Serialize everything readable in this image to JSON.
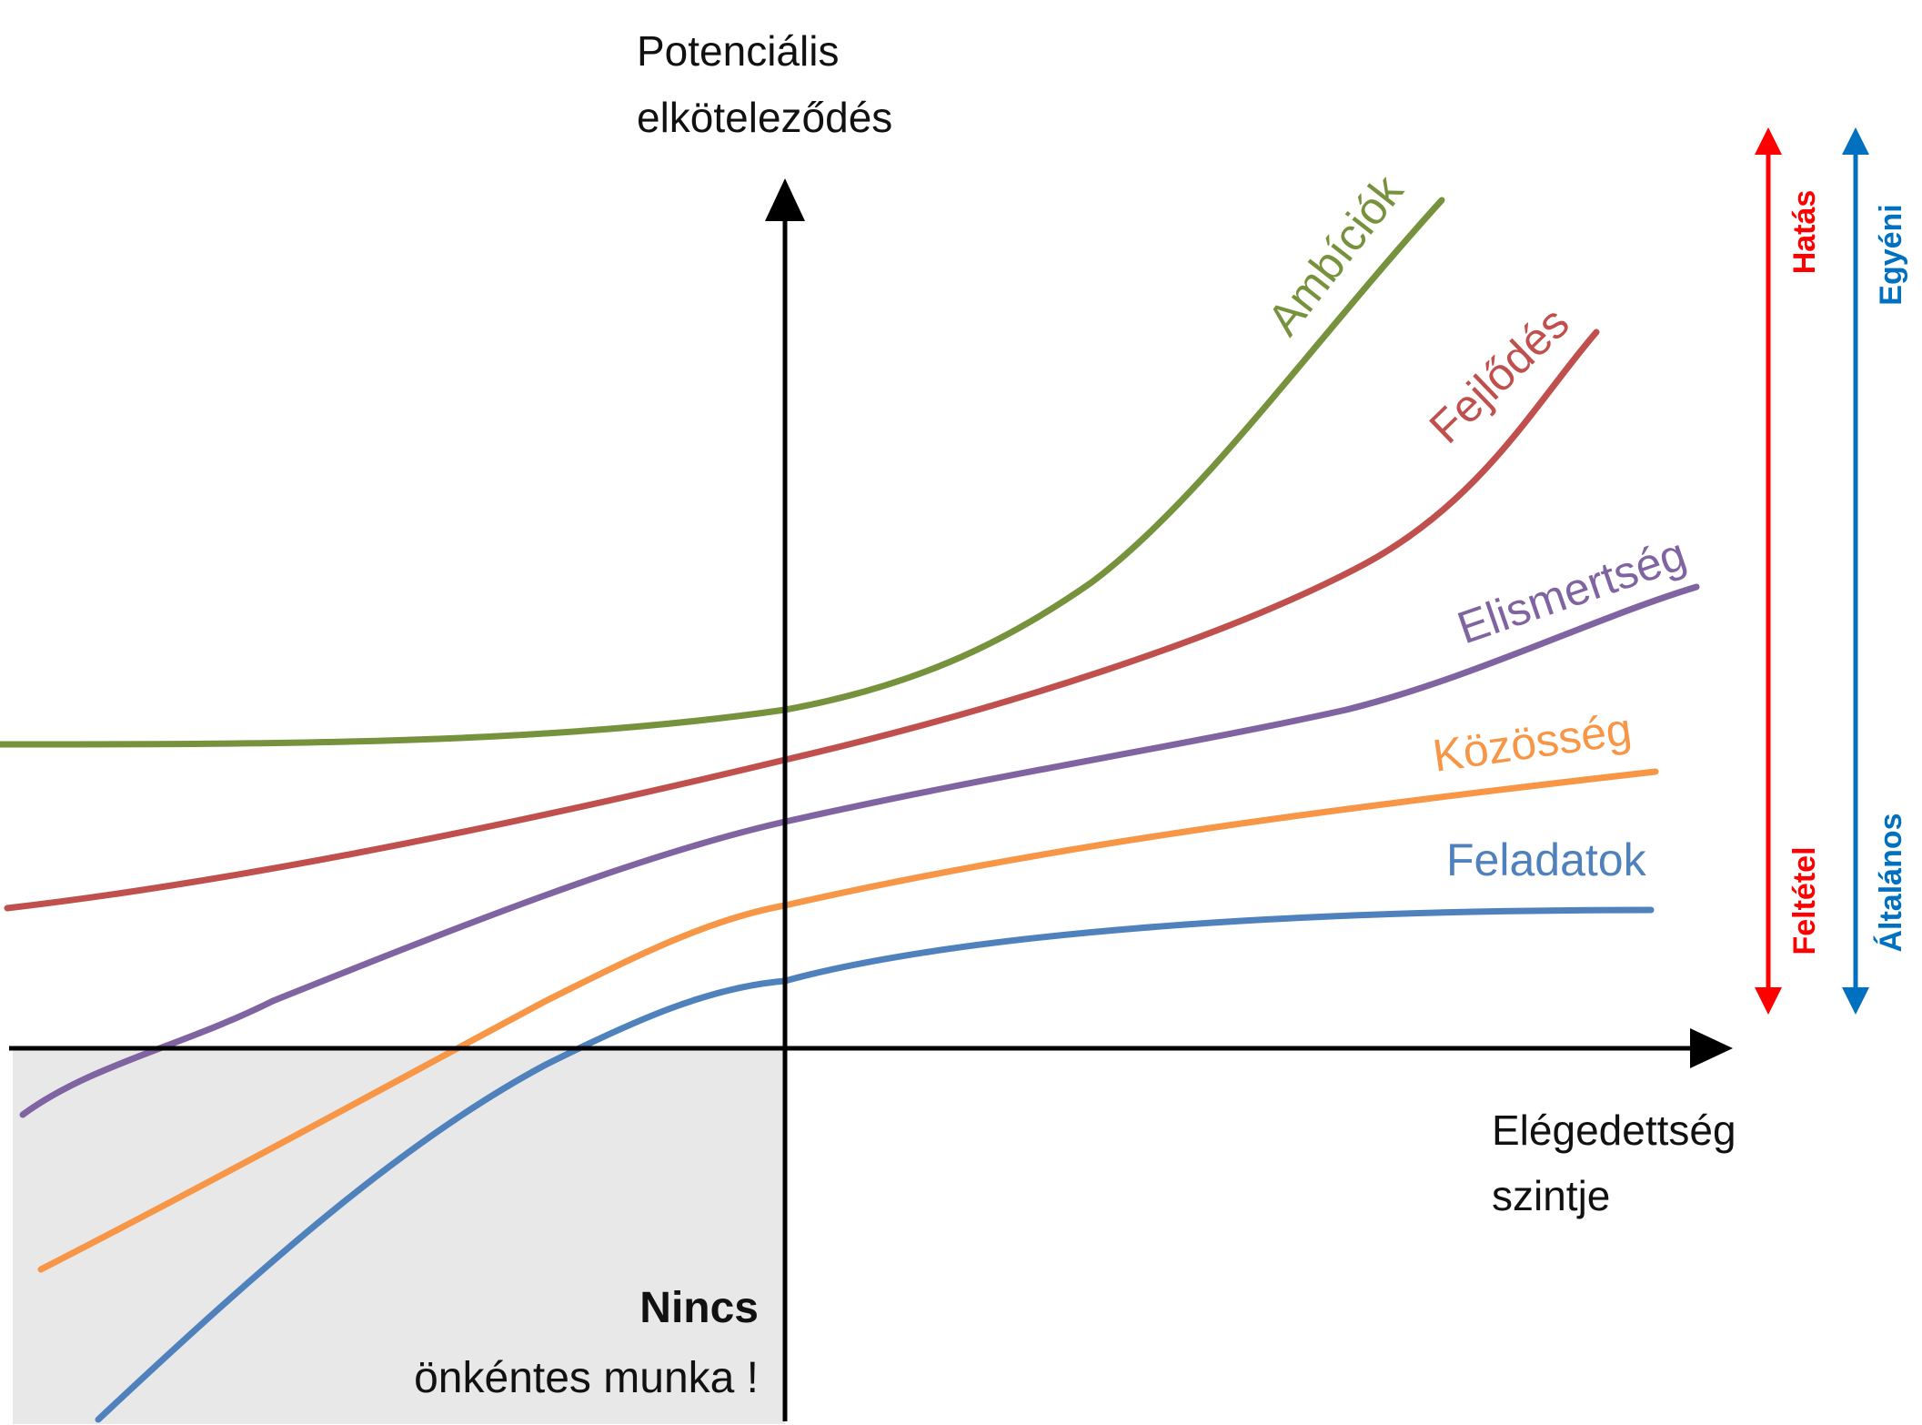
{
  "axes": {
    "y_label_line1": "Potenciális",
    "y_label_line2": "elköteleződés",
    "x_label_line1": "Elégedettség",
    "x_label_line2": "szintje"
  },
  "curves": [
    {
      "key": "ambiciok",
      "label": "Ambíciók",
      "color": "#76923C"
    },
    {
      "key": "fejlodes",
      "label": "Fejlődés",
      "color": "#C0504D"
    },
    {
      "key": "elismertseg",
      "label": "Elismertség",
      "color": "#8064A2"
    },
    {
      "key": "kozosseg",
      "label": "Közösség",
      "color": "#F79646"
    },
    {
      "key": "feladatok",
      "label": "Feladatok",
      "color": "#4F81BD"
    }
  ],
  "scales": {
    "red": {
      "top": "Hatás",
      "bottom": "Feltétel",
      "color": "#FF0000"
    },
    "blue": {
      "top": "Egyéni",
      "bottom": "Általános",
      "color": "#0070C0"
    }
  },
  "region": {
    "bold": "Nincs",
    "text": "önkéntes munka !",
    "color": "#E8E8E8"
  }
}
